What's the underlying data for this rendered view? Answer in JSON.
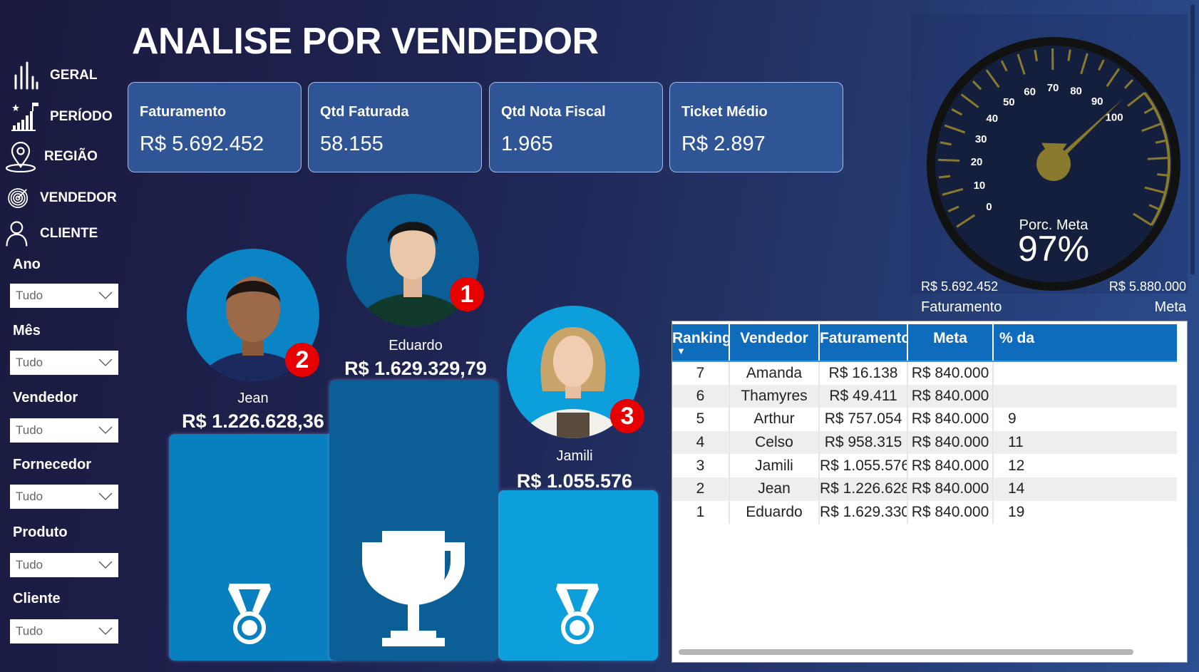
{
  "title": "ANALISE POR VENDEDOR",
  "nav": [
    {
      "label": "GERAL",
      "icon": "bar-chart-icon"
    },
    {
      "label": "PERÍODO",
      "icon": "growth-chart-icon"
    },
    {
      "label": "REGIÃO",
      "icon": "map-pin-icon"
    },
    {
      "label": "VENDEDOR",
      "icon": "target-icon"
    },
    {
      "label": "CLIENTE",
      "icon": "user-icon"
    }
  ],
  "filters": [
    {
      "label": "Ano",
      "value": "Tudo"
    },
    {
      "label": "Mês",
      "value": "Tudo"
    },
    {
      "label": "Vendedor",
      "value": "Tudo"
    },
    {
      "label": "Fornecedor",
      "value": "Tudo"
    },
    {
      "label": "Produto",
      "value": "Tudo"
    },
    {
      "label": "Cliente",
      "value": "Tudo"
    }
  ],
  "kpis": [
    {
      "label": "Faturamento",
      "value": "R$ 5.692.452"
    },
    {
      "label": "Qtd Faturada",
      "value": "58.155"
    },
    {
      "label": "Qtd Nota Fiscal",
      "value": "1.965"
    },
    {
      "label": "Ticket Médio",
      "value": "R$ 2.897"
    }
  ],
  "podium": [
    {
      "rank": "1",
      "name": "Eduardo",
      "value": "R$ 1.629.329,79",
      "icon": "trophy-icon",
      "color": "#0b5e96"
    },
    {
      "rank": "2",
      "name": "Jean",
      "value": "R$ 1.226.628,36",
      "icon": "medal-icon",
      "color": "#0880bf"
    },
    {
      "rank": "3",
      "name": "Jamili",
      "value": "R$ 1.055.576",
      "icon": "medal-icon",
      "color": "#0c9fdc"
    }
  ],
  "gauge": {
    "title": "Porc. Meta",
    "value_label": "97%",
    "value": 97,
    "min": 0,
    "max": 140,
    "tick_labels": [
      "0",
      "10",
      "20",
      "30",
      "40",
      "50",
      "60",
      "70",
      "80",
      "90",
      "100"
    ],
    "left_value": "R$ 5.692.452",
    "right_value": "R$ 5.880.000",
    "left_caption": "Faturamento",
    "right_caption": "Meta",
    "accent": "#8a7a2e"
  },
  "table": {
    "headers": [
      "Ranking",
      "Vendedor",
      "Faturamento",
      "Meta",
      "% da"
    ],
    "rows": [
      [
        "7",
        "Amanda",
        "R$ 16.138",
        "R$ 840.000",
        ""
      ],
      [
        "6",
        "Thamyres",
        "R$ 49.411",
        "R$ 840.000",
        ""
      ],
      [
        "5",
        "Arthur",
        "R$ 757.054",
        "R$ 840.000",
        "9"
      ],
      [
        "4",
        "Celso",
        "R$ 958.315",
        "R$ 840.000",
        "11"
      ],
      [
        "3",
        "Jamili",
        "R$ 1.055.576",
        "R$ 840.000",
        "12"
      ],
      [
        "2",
        "Jean",
        "R$ 1.226.628",
        "R$ 840.000",
        "14"
      ],
      [
        "1",
        "Eduardo",
        "R$ 1.629.330",
        "R$ 840.000",
        "19"
      ]
    ]
  }
}
